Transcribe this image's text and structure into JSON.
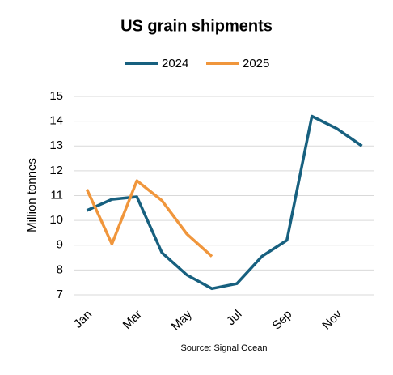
{
  "chart_data": {
    "type": "line",
    "title": "US grain shipments",
    "y_label": "Million tonnes",
    "source": "Source: Signal Ocean",
    "categories": [
      "Jan",
      null,
      "Mar",
      null,
      "May",
      null,
      "Jul",
      null,
      "Sep",
      null,
      "Nov",
      null
    ],
    "series": [
      {
        "name": "2024",
        "color": "#17607f",
        "values": [
          10.4,
          10.85,
          10.95,
          8.7,
          7.8,
          7.25,
          7.45,
          8.55,
          9.2,
          14.2,
          13.7,
          13.0
        ]
      },
      {
        "name": "2025",
        "color": "#f0963c",
        "values": [
          11.25,
          9.05,
          11.6,
          10.8,
          9.45,
          8.55,
          null,
          null,
          null,
          null,
          null,
          null
        ]
      }
    ],
    "ylim": [
      7,
      15
    ],
    "yticks": [
      7,
      8,
      9,
      10,
      11,
      12,
      13,
      14,
      15
    ],
    "grid": true,
    "legend": "top"
  }
}
